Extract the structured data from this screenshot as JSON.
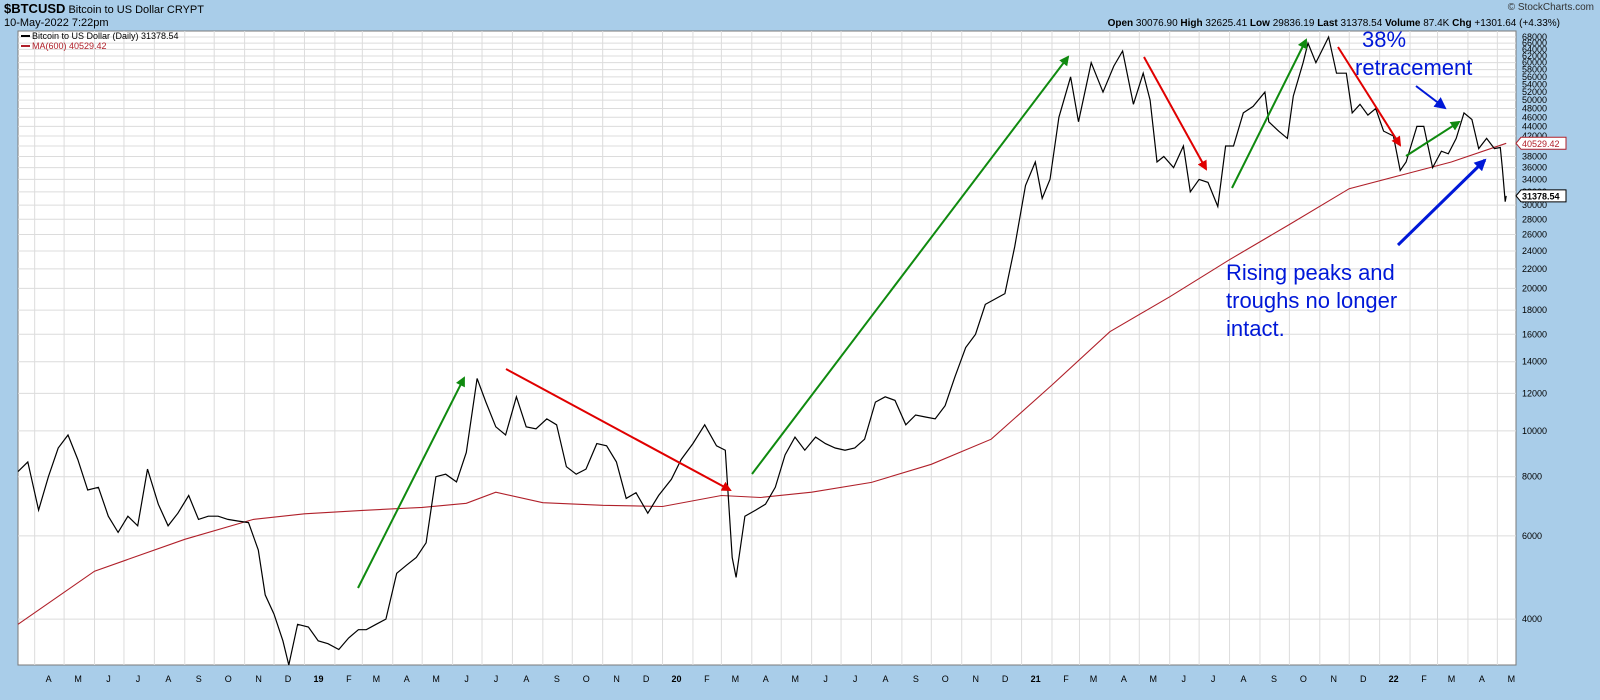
{
  "header": {
    "symbol": "$BTCUSD",
    "name": "Bitcoin to US Dollar",
    "exchange": "CRYPT",
    "date": "10-May-2022 7:22pm",
    "copyright": "© StockCharts.com",
    "stats": {
      "open_label": "Open",
      "open": "30076.90",
      "high_label": "High",
      "high": "32625.41",
      "low_label": "Low",
      "low": "29836.19",
      "last_label": "Last",
      "last": "31378.54",
      "volume_label": "Volume",
      "volume": "87.4K",
      "chg_label": "Chg",
      "chg": "+1301.64 (+4.33%)"
    }
  },
  "legend": {
    "price": "Bitcoin to US Dollar (Daily) 31378.54",
    "ma": "MA(600) 40529.42"
  },
  "colors": {
    "price": "#000000",
    "ma": "#b0202a",
    "green_arrow": "#0f8a0f",
    "red_arrow": "#e00000",
    "blue_arrow": "#0018d8",
    "annotation": "#0018d8",
    "frame": "#a9cde9",
    "grid": "#d8d8d8"
  },
  "annotations": {
    "retracement_1": "38%",
    "retracement_2": "retracement",
    "note_1": "Rising peaks and",
    "note_2": "troughs no longer",
    "note_3": "intact."
  },
  "chart_data": {
    "type": "line",
    "scale": "log",
    "ylim": [
      3200,
      70000
    ],
    "xlim": [
      "2018-03-15",
      "2022-05-20"
    ],
    "y_ticks": [
      4000,
      6000,
      8000,
      10000,
      12000,
      14000,
      16000,
      18000,
      20000,
      22000,
      24000,
      26000,
      28000,
      30000,
      32000,
      34000,
      36000,
      38000,
      40000,
      42000,
      44000,
      46000,
      48000,
      50000,
      52000,
      54000,
      56000,
      58000,
      60000,
      62000,
      64000,
      66000,
      68000
    ],
    "price_tag": "31378.54",
    "ma_tag": "40529.42",
    "x_ticks": [
      {
        "date": "2018-04-01",
        "label": "A"
      },
      {
        "date": "2018-05-01",
        "label": "M"
      },
      {
        "date": "2018-06-01",
        "label": "J"
      },
      {
        "date": "2018-07-01",
        "label": "J"
      },
      {
        "date": "2018-08-01",
        "label": "A"
      },
      {
        "date": "2018-09-01",
        "label": "S"
      },
      {
        "date": "2018-10-01",
        "label": "O"
      },
      {
        "date": "2018-11-01",
        "label": "N"
      },
      {
        "date": "2018-12-01",
        "label": "D"
      },
      {
        "date": "2019-01-01",
        "label": "19"
      },
      {
        "date": "2019-02-01",
        "label": "F"
      },
      {
        "date": "2019-03-01",
        "label": "M"
      },
      {
        "date": "2019-04-01",
        "label": "A"
      },
      {
        "date": "2019-05-01",
        "label": "M"
      },
      {
        "date": "2019-06-01",
        "label": "J"
      },
      {
        "date": "2019-07-01",
        "label": "J"
      },
      {
        "date": "2019-08-01",
        "label": "A"
      },
      {
        "date": "2019-09-01",
        "label": "S"
      },
      {
        "date": "2019-10-01",
        "label": "O"
      },
      {
        "date": "2019-11-01",
        "label": "N"
      },
      {
        "date": "2019-12-01",
        "label": "D"
      },
      {
        "date": "2020-01-01",
        "label": "20"
      },
      {
        "date": "2020-02-01",
        "label": "F"
      },
      {
        "date": "2020-03-01",
        "label": "M"
      },
      {
        "date": "2020-04-01",
        "label": "A"
      },
      {
        "date": "2020-05-01",
        "label": "M"
      },
      {
        "date": "2020-06-01",
        "label": "J"
      },
      {
        "date": "2020-07-01",
        "label": "J"
      },
      {
        "date": "2020-08-01",
        "label": "A"
      },
      {
        "date": "2020-09-01",
        "label": "S"
      },
      {
        "date": "2020-10-01",
        "label": "O"
      },
      {
        "date": "2020-11-01",
        "label": "N"
      },
      {
        "date": "2020-12-01",
        "label": "D"
      },
      {
        "date": "2021-01-01",
        "label": "21"
      },
      {
        "date": "2021-02-01",
        "label": "F"
      },
      {
        "date": "2021-03-01",
        "label": "M"
      },
      {
        "date": "2021-04-01",
        "label": "A"
      },
      {
        "date": "2021-05-01",
        "label": "M"
      },
      {
        "date": "2021-06-01",
        "label": "J"
      },
      {
        "date": "2021-07-01",
        "label": "J"
      },
      {
        "date": "2021-08-01",
        "label": "A"
      },
      {
        "date": "2021-09-01",
        "label": "S"
      },
      {
        "date": "2021-10-01",
        "label": "O"
      },
      {
        "date": "2021-11-01",
        "label": "N"
      },
      {
        "date": "2021-12-01",
        "label": "D"
      },
      {
        "date": "2022-01-01",
        "label": "22"
      },
      {
        "date": "2022-02-01",
        "label": "F"
      },
      {
        "date": "2022-03-01",
        "label": "M"
      },
      {
        "date": "2022-04-01",
        "label": "A"
      },
      {
        "date": "2022-05-01",
        "label": "M"
      }
    ],
    "series": [
      {
        "name": "Bitcoin to US Dollar (Daily)",
        "points": [
          [
            "2018-03-15",
            8200
          ],
          [
            "2018-03-25",
            8600
          ],
          [
            "2018-04-05",
            6800
          ],
          [
            "2018-04-15",
            8000
          ],
          [
            "2018-04-25",
            9200
          ],
          [
            "2018-05-05",
            9800
          ],
          [
            "2018-05-15",
            8700
          ],
          [
            "2018-05-25",
            7500
          ],
          [
            "2018-06-05",
            7600
          ],
          [
            "2018-06-15",
            6600
          ],
          [
            "2018-06-25",
            6100
          ],
          [
            "2018-07-05",
            6600
          ],
          [
            "2018-07-15",
            6300
          ],
          [
            "2018-07-25",
            8300
          ],
          [
            "2018-08-05",
            7000
          ],
          [
            "2018-08-15",
            6300
          ],
          [
            "2018-08-25",
            6700
          ],
          [
            "2018-09-05",
            7300
          ],
          [
            "2018-09-15",
            6500
          ],
          [
            "2018-09-25",
            6600
          ],
          [
            "2018-10-05",
            6600
          ],
          [
            "2018-10-15",
            6500
          ],
          [
            "2018-10-25",
            6450
          ],
          [
            "2018-11-05",
            6400
          ],
          [
            "2018-11-15",
            5600
          ],
          [
            "2018-11-22",
            4500
          ],
          [
            "2018-12-01",
            4100
          ],
          [
            "2018-12-10",
            3600
          ],
          [
            "2018-12-16",
            3200
          ],
          [
            "2018-12-25",
            3900
          ],
          [
            "2019-01-05",
            3850
          ],
          [
            "2019-01-15",
            3600
          ],
          [
            "2019-01-25",
            3550
          ],
          [
            "2019-02-05",
            3450
          ],
          [
            "2019-02-15",
            3650
          ],
          [
            "2019-02-25",
            3800
          ],
          [
            "2019-03-05",
            3800
          ],
          [
            "2019-03-15",
            3900
          ],
          [
            "2019-03-25",
            4000
          ],
          [
            "2019-04-05",
            5000
          ],
          [
            "2019-04-15",
            5200
          ],
          [
            "2019-04-25",
            5400
          ],
          [
            "2019-05-05",
            5800
          ],
          [
            "2019-05-15",
            8000
          ],
          [
            "2019-05-25",
            8100
          ],
          [
            "2019-06-05",
            7800
          ],
          [
            "2019-06-15",
            9000
          ],
          [
            "2019-06-26",
            12900
          ],
          [
            "2019-07-05",
            11500
          ],
          [
            "2019-07-15",
            10200
          ],
          [
            "2019-07-25",
            9800
          ],
          [
            "2019-08-05",
            11800
          ],
          [
            "2019-08-15",
            10200
          ],
          [
            "2019-08-25",
            10100
          ],
          [
            "2019-09-05",
            10600
          ],
          [
            "2019-09-15",
            10300
          ],
          [
            "2019-09-25",
            8400
          ],
          [
            "2019-10-05",
            8100
          ],
          [
            "2019-10-15",
            8300
          ],
          [
            "2019-10-26",
            9400
          ],
          [
            "2019-11-05",
            9300
          ],
          [
            "2019-11-15",
            8600
          ],
          [
            "2019-11-25",
            7200
          ],
          [
            "2019-12-05",
            7400
          ],
          [
            "2019-12-17",
            6700
          ],
          [
            "2019-12-28",
            7300
          ],
          [
            "2020-01-10",
            7900
          ],
          [
            "2020-01-20",
            8700
          ],
          [
            "2020-02-01",
            9400
          ],
          [
            "2020-02-13",
            10300
          ],
          [
            "2020-02-25",
            9300
          ],
          [
            "2020-03-05",
            9100
          ],
          [
            "2020-03-12",
            5400
          ],
          [
            "2020-03-16",
            4900
          ],
          [
            "2020-03-25",
            6600
          ],
          [
            "2020-04-05",
            6800
          ],
          [
            "2020-04-15",
            7000
          ],
          [
            "2020-04-25",
            7600
          ],
          [
            "2020-05-05",
            8900
          ],
          [
            "2020-05-15",
            9700
          ],
          [
            "2020-05-25",
            9100
          ],
          [
            "2020-06-05",
            9700
          ],
          [
            "2020-06-15",
            9400
          ],
          [
            "2020-06-25",
            9200
          ],
          [
            "2020-07-05",
            9100
          ],
          [
            "2020-07-15",
            9200
          ],
          [
            "2020-07-25",
            9600
          ],
          [
            "2020-08-05",
            11500
          ],
          [
            "2020-08-15",
            11800
          ],
          [
            "2020-08-25",
            11600
          ],
          [
            "2020-09-05",
            10300
          ],
          [
            "2020-09-15",
            10800
          ],
          [
            "2020-09-25",
            10700
          ],
          [
            "2020-10-05",
            10600
          ],
          [
            "2020-10-15",
            11300
          ],
          [
            "2020-10-25",
            13000
          ],
          [
            "2020-11-05",
            15000
          ],
          [
            "2020-11-15",
            16000
          ],
          [
            "2020-11-25",
            18500
          ],
          [
            "2020-12-05",
            19000
          ],
          [
            "2020-12-15",
            19500
          ],
          [
            "2020-12-25",
            24500
          ],
          [
            "2021-01-05",
            33000
          ],
          [
            "2021-01-15",
            37000
          ],
          [
            "2021-01-22",
            31000
          ],
          [
            "2021-01-30",
            34000
          ],
          [
            "2021-02-08",
            46000
          ],
          [
            "2021-02-20",
            56000
          ],
          [
            "2021-02-28",
            45000
          ],
          [
            "2021-03-13",
            60000
          ],
          [
            "2021-03-25",
            52000
          ],
          [
            "2021-04-05",
            59000
          ],
          [
            "2021-04-14",
            63500
          ],
          [
            "2021-04-25",
            49000
          ],
          [
            "2021-05-05",
            57000
          ],
          [
            "2021-05-12",
            50000
          ],
          [
            "2021-05-19",
            37000
          ],
          [
            "2021-05-26",
            38000
          ],
          [
            "2021-06-05",
            36000
          ],
          [
            "2021-06-15",
            40000
          ],
          [
            "2021-06-22",
            32000
          ],
          [
            "2021-07-01",
            34000
          ],
          [
            "2021-07-10",
            33500
          ],
          [
            "2021-07-20",
            29800
          ],
          [
            "2021-07-28",
            40000
          ],
          [
            "2021-08-05",
            40000
          ],
          [
            "2021-08-15",
            47000
          ],
          [
            "2021-08-25",
            48500
          ],
          [
            "2021-09-06",
            52000
          ],
          [
            "2021-09-10",
            45000
          ],
          [
            "2021-09-20",
            43000
          ],
          [
            "2021-09-29",
            41500
          ],
          [
            "2021-10-05",
            51000
          ],
          [
            "2021-10-15",
            60000
          ],
          [
            "2021-10-20",
            66000
          ],
          [
            "2021-10-28",
            60000
          ],
          [
            "2021-11-10",
            68000
          ],
          [
            "2021-11-18",
            57000
          ],
          [
            "2021-11-28",
            57000
          ],
          [
            "2021-12-04",
            47000
          ],
          [
            "2021-12-12",
            49000
          ],
          [
            "2021-12-20",
            46500
          ],
          [
            "2021-12-28",
            48000
          ],
          [
            "2022-01-05",
            43000
          ],
          [
            "2022-01-15",
            42000
          ],
          [
            "2022-01-22",
            35500
          ],
          [
            "2022-01-28",
            37000
          ],
          [
            "2022-02-08",
            44000
          ],
          [
            "2022-02-15",
            44000
          ],
          [
            "2022-02-24",
            36000
          ],
          [
            "2022-03-05",
            39000
          ],
          [
            "2022-03-12",
            38500
          ],
          [
            "2022-03-20",
            41500
          ],
          [
            "2022-03-28",
            47000
          ],
          [
            "2022-04-05",
            45500
          ],
          [
            "2022-04-12",
            39500
          ],
          [
            "2022-04-20",
            41500
          ],
          [
            "2022-04-28",
            39500
          ],
          [
            "2022-05-04",
            39700
          ],
          [
            "2022-05-06",
            36000
          ],
          [
            "2022-05-09",
            30500
          ],
          [
            "2022-05-10",
            31378
          ]
        ]
      },
      {
        "name": "MA(600)",
        "points": [
          [
            "2018-03-15",
            3900
          ],
          [
            "2018-06-01",
            5050
          ],
          [
            "2018-09-01",
            5900
          ],
          [
            "2018-11-10",
            6500
          ],
          [
            "2019-01-01",
            6680
          ],
          [
            "2019-03-01",
            6790
          ],
          [
            "2019-05-01",
            6890
          ],
          [
            "2019-06-15",
            7030
          ],
          [
            "2019-07-15",
            7420
          ],
          [
            "2019-09-01",
            7050
          ],
          [
            "2019-11-01",
            6960
          ],
          [
            "2020-01-01",
            6920
          ],
          [
            "2020-03-01",
            7300
          ],
          [
            "2020-04-10",
            7230
          ],
          [
            "2020-06-01",
            7420
          ],
          [
            "2020-08-01",
            7780
          ],
          [
            "2020-10-01",
            8500
          ],
          [
            "2020-12-01",
            9600
          ],
          [
            "2021-02-01",
            12500
          ],
          [
            "2021-04-01",
            16200
          ],
          [
            "2021-06-01",
            19200
          ],
          [
            "2021-08-01",
            23000
          ],
          [
            "2021-10-01",
            27300
          ],
          [
            "2021-12-01",
            32500
          ],
          [
            "2022-01-25",
            34800
          ],
          [
            "2022-03-15",
            37000
          ],
          [
            "2022-05-10",
            40529
          ]
        ]
      }
    ]
  }
}
